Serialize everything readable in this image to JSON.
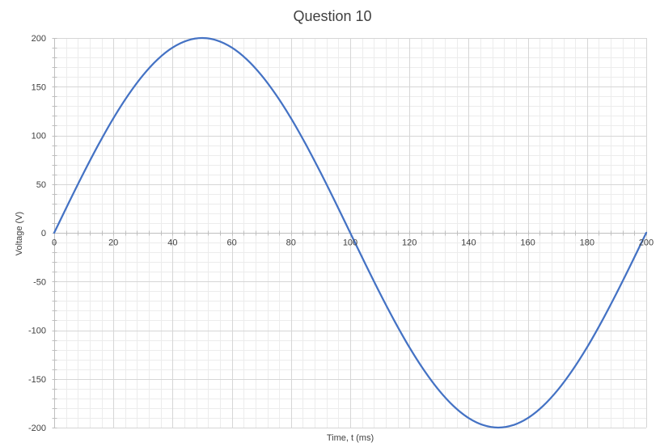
{
  "chart_data": {
    "type": "line",
    "title": "Question 10",
    "xlabel": "Time, t (ms)",
    "ylabel": "Voltage (V)",
    "xlim": [
      0,
      200
    ],
    "ylim": [
      -200,
      200
    ],
    "x_ticks": [
      0,
      20,
      40,
      60,
      80,
      100,
      120,
      140,
      160,
      180,
      200
    ],
    "y_ticks": [
      -200,
      -150,
      -100,
      -50,
      0,
      50,
      100,
      150,
      200
    ],
    "x_tick_labels": [
      "0",
      "20",
      "40",
      "60",
      "80",
      "100",
      "120",
      "140",
      "160",
      "180",
      "200"
    ],
    "y_tick_labels": [
      "-200",
      "-150",
      "-100",
      "-50",
      "0",
      "50",
      "100",
      "150",
      "200"
    ],
    "grid": true,
    "minor_grid": true,
    "legend": "none",
    "series": [
      {
        "color": "#4472c4",
        "x": [
          0,
          5,
          10,
          15,
          20,
          25,
          30,
          35,
          40,
          45,
          50,
          55,
          60,
          65,
          70,
          75,
          80,
          85,
          90,
          95,
          100,
          105,
          110,
          115,
          120,
          125,
          130,
          135,
          140,
          145,
          150,
          155,
          160,
          165,
          170,
          175,
          180,
          185,
          190,
          195,
          200
        ],
        "y": [
          0,
          31.3,
          61.8,
          90.8,
          117.6,
          141.4,
          161.8,
          178.2,
          190.2,
          197.5,
          200,
          197.5,
          190.2,
          178.2,
          161.8,
          141.4,
          117.6,
          90.8,
          61.8,
          31.3,
          0,
          -31.3,
          -61.8,
          -90.8,
          -117.6,
          -141.4,
          -161.8,
          -178.2,
          -190.2,
          -197.5,
          -200,
          -197.5,
          -190.2,
          -178.2,
          -161.8,
          -141.4,
          -117.6,
          -90.8,
          -61.8,
          -31.3,
          0
        ]
      }
    ]
  }
}
